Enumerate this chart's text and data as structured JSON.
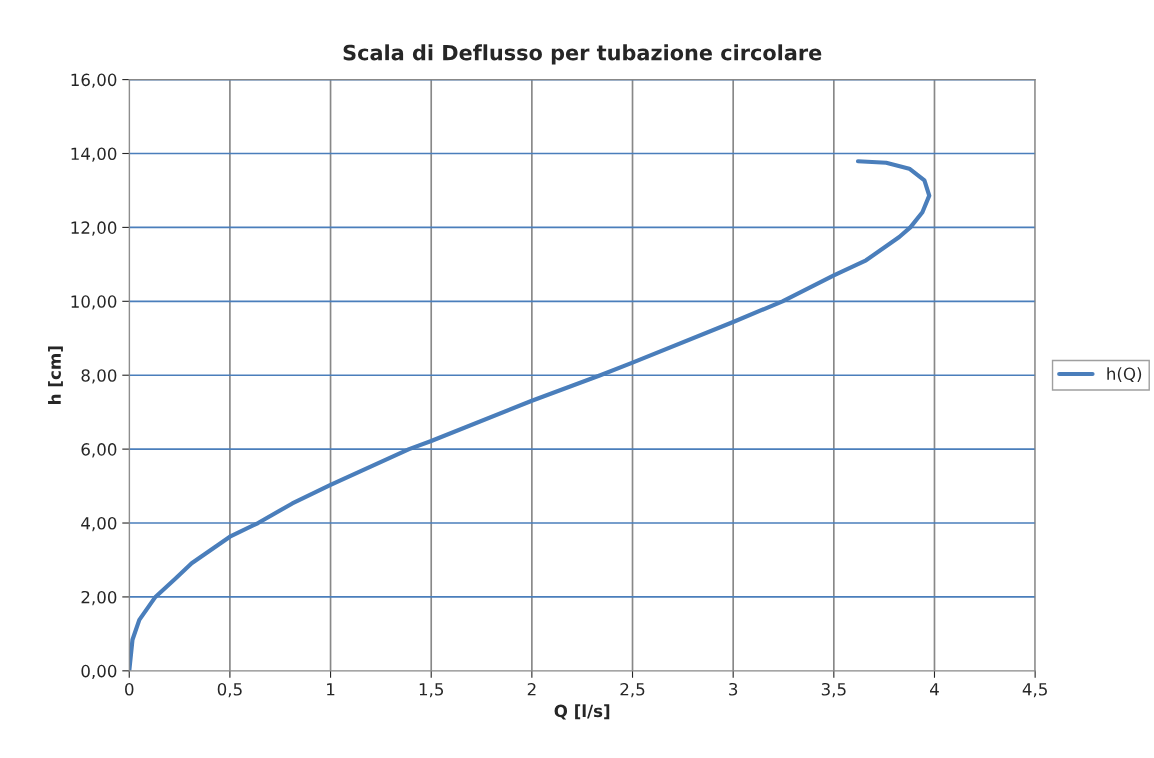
{
  "chart_data": {
    "type": "line",
    "title": "Scala di Deflusso per tubazione circolare",
    "xlabel": "Q [l/s]",
    "ylabel": "h [cm]",
    "series": [
      {
        "name": "h(Q)",
        "color": "#4a7ebb",
        "x": [
          0,
          0.016,
          0.05,
          0.13,
          0.23,
          0.31,
          0.5,
          0.64,
          0.81,
          1.0,
          1.39,
          1.5,
          2.0,
          2.34,
          2.5,
          3.0,
          3.245,
          3.5,
          3.66,
          3.825,
          3.88,
          3.94,
          3.974,
          3.95,
          3.875,
          3.76,
          3.62
        ],
        "values": [
          0,
          0.84,
          1.38,
          2.0,
          2.5,
          2.91,
          3.63,
          4.0,
          4.53,
          5.03,
          6.0,
          6.22,
          7.31,
          8.0,
          8.34,
          9.44,
          10.0,
          10.7,
          11.11,
          11.74,
          12.0,
          12.41,
          12.86,
          13.27,
          13.59,
          13.75,
          13.79
        ]
      }
    ],
    "xlim": [
      0,
      4.5
    ],
    "xticks": [
      0,
      {
        "value": 0.5,
        "label": "0,5"
      },
      1,
      {
        "value": 1.5,
        "label": "1,5"
      },
      2,
      {
        "value": 2.5,
        "label": "2,5"
      },
      3,
      {
        "value": 3.5,
        "label": "3,5"
      },
      4,
      {
        "value": 4.5,
        "label": "4,5"
      }
    ],
    "ylim": [
      0,
      16
    ],
    "yticks": [
      {
        "value": 0,
        "label": "0,00"
      },
      {
        "value": 2,
        "label": "2,00"
      },
      {
        "value": 4,
        "label": "4,00"
      },
      {
        "value": 6,
        "label": "6,00"
      },
      {
        "value": 8,
        "label": "8,00"
      },
      {
        "value": 10,
        "label": "10,00"
      },
      {
        "value": 12,
        "label": "12,00"
      },
      {
        "value": 14,
        "label": "14,00"
      },
      {
        "value": 16,
        "label": "16,00"
      }
    ],
    "grid": true,
    "legend": "right",
    "marker": "none",
    "line_style": "solid"
  }
}
